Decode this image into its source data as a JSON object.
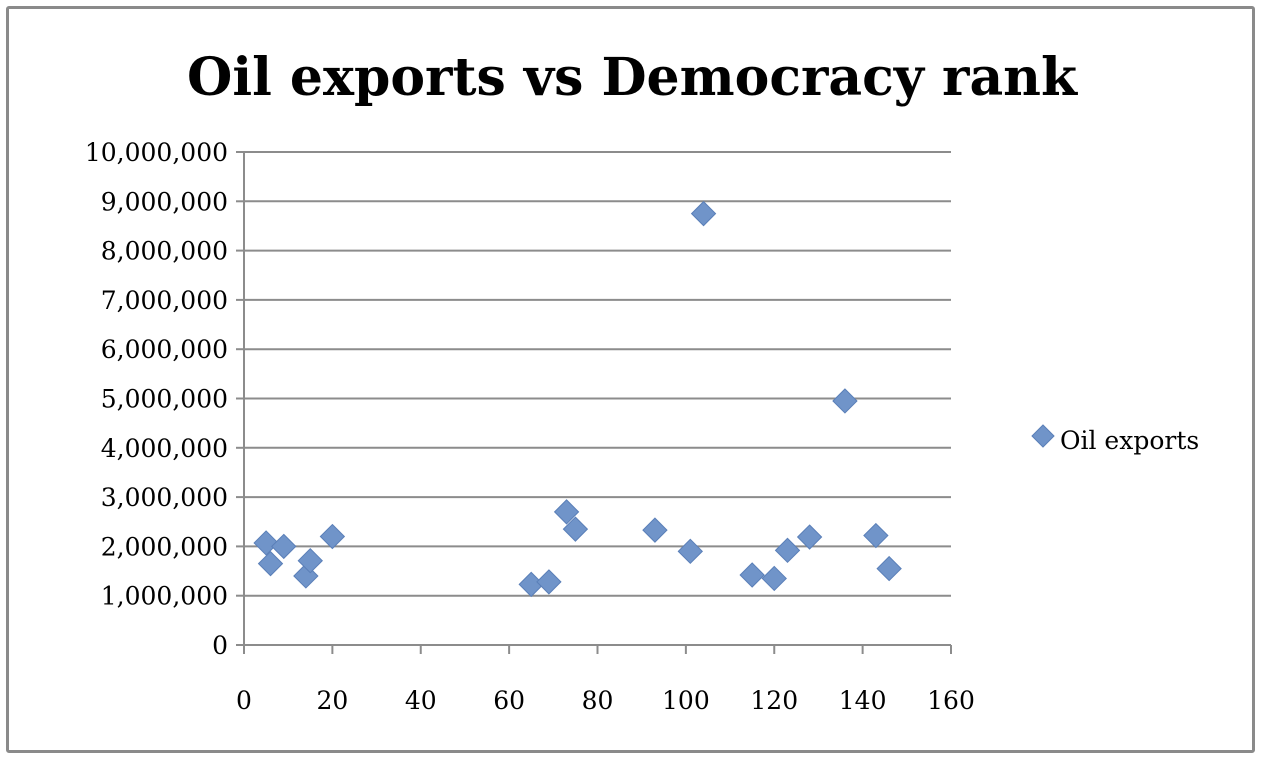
{
  "chart_data": {
    "type": "scatter",
    "title": "Oil exports vs Democracy rank",
    "xlabel": "",
    "ylabel": "",
    "xlim": [
      0,
      160
    ],
    "ylim": [
      0,
      10000000
    ],
    "x_ticks": [
      "0",
      "20",
      "40",
      "60",
      "80",
      "100",
      "120",
      "140",
      "160"
    ],
    "y_ticks": [
      "0",
      "1,000,000",
      "2,000,000",
      "3,000,000",
      "4,000,000",
      "5,000,000",
      "6,000,000",
      "7,000,000",
      "8,000,000",
      "9,000,000",
      "10,000,000"
    ],
    "grid": "horizontal",
    "legend_position": "right",
    "series": [
      {
        "name": "Oil exports",
        "color": "#7094c9",
        "marker": "diamond",
        "points": [
          {
            "x": 5,
            "y": 2070000
          },
          {
            "x": 6,
            "y": 1650000
          },
          {
            "x": 9,
            "y": 2000000
          },
          {
            "x": 14,
            "y": 1400000
          },
          {
            "x": 15,
            "y": 1710000
          },
          {
            "x": 20,
            "y": 2200000
          },
          {
            "x": 65,
            "y": 1230000
          },
          {
            "x": 69,
            "y": 1280000
          },
          {
            "x": 73,
            "y": 2700000
          },
          {
            "x": 75,
            "y": 2350000
          },
          {
            "x": 93,
            "y": 2330000
          },
          {
            "x": 101,
            "y": 1900000
          },
          {
            "x": 104,
            "y": 8750000
          },
          {
            "x": 115,
            "y": 1420000
          },
          {
            "x": 120,
            "y": 1350000
          },
          {
            "x": 123,
            "y": 1920000
          },
          {
            "x": 128,
            "y": 2190000
          },
          {
            "x": 136,
            "y": 4950000
          },
          {
            "x": 143,
            "y": 2220000
          },
          {
            "x": 146,
            "y": 1550000
          }
        ]
      }
    ]
  }
}
